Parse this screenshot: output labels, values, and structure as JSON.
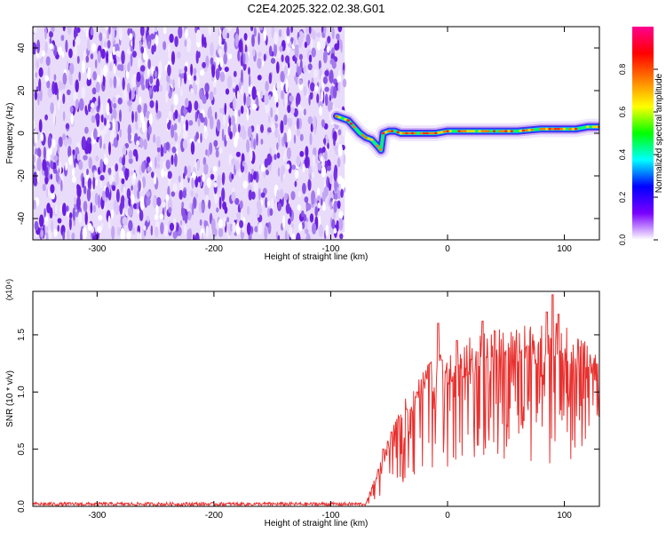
{
  "title": "C2E4.2025.322.02.38.G01",
  "colors": {
    "snr_line": "#e8312f",
    "axis": "#000000",
    "background": "#ffffff"
  },
  "chart_data": [
    {
      "type": "heatmap",
      "name": "spectrogram",
      "xlabel": "Height of straight line (km)",
      "ylabel": "Frequency (Hz)",
      "xlim": [
        -355,
        130
      ],
      "ylim": [
        -50,
        50
      ],
      "xticks": [
        -300,
        -200,
        -100,
        0,
        100
      ],
      "yticks": [
        -40,
        -20,
        0,
        20,
        40
      ],
      "noise_region_x": [
        -355,
        -88
      ],
      "signal_track": {
        "x": [
          -95,
          -90,
          -85,
          -80,
          -75,
          -70,
          -65,
          -60,
          -57,
          -55,
          -50,
          -45,
          -40,
          -30,
          -20,
          -10,
          0,
          20,
          40,
          60,
          80,
          90,
          100,
          110,
          120,
          130
        ],
        "freq": [
          8,
          7,
          6,
          3,
          0,
          -2,
          -3,
          -6,
          -8,
          0,
          1,
          1,
          0,
          0,
          0,
          0,
          1,
          1,
          1,
          1,
          2,
          2,
          2,
          2,
          3,
          3
        ]
      },
      "colorbar": {
        "label": "Normalized spectral amplitude",
        "range": [
          0.0,
          1.0
        ],
        "ticks": [
          "0.0",
          "0.2",
          "0.4",
          "0.6",
          "0.8"
        ],
        "stops": [
          "#ffffff",
          "#7a00ff",
          "#0000ff",
          "#00ffff",
          "#00ff00",
          "#ffff00",
          "#ff8000",
          "#ff0000",
          "#ff0090"
        ]
      }
    },
    {
      "type": "line",
      "name": "snr",
      "xlabel": "Height of straight line (km)",
      "ylabel": "SNR (10 * v/v)",
      "y_scale_label": "(x10⁴)",
      "xlim": [
        -355,
        130
      ],
      "ylim": [
        0.0,
        1.88
      ],
      "xticks": [
        -300,
        -200,
        -100,
        0,
        100
      ],
      "yticks": [
        "0.0",
        "0.5",
        "1.0",
        "1.5"
      ],
      "envelope": {
        "x": [
          -355,
          -70,
          -60,
          -50,
          -40,
          -30,
          -20,
          -10,
          0,
          10,
          20,
          30,
          40,
          50,
          60,
          70,
          80,
          90,
          100,
          110,
          120,
          130
        ],
        "y": [
          0.01,
          0.02,
          0.3,
          0.55,
          0.8,
          0.95,
          1.1,
          1.2,
          1.25,
          1.3,
          1.35,
          1.38,
          1.4,
          1.42,
          1.44,
          1.45,
          1.47,
          1.5,
          1.45,
          1.35,
          1.3,
          1.25
        ]
      },
      "spikes": {
        "x": [
          -55,
          -48,
          -35,
          -26,
          -15,
          -8,
          -5,
          8,
          30,
          85,
          90,
          95
        ],
        "y": [
          0.5,
          0.65,
          0.85,
          1.0,
          1.25,
          1.6,
          1.28,
          1.45,
          1.62,
          1.7,
          1.85,
          1.68
        ]
      }
    }
  ]
}
